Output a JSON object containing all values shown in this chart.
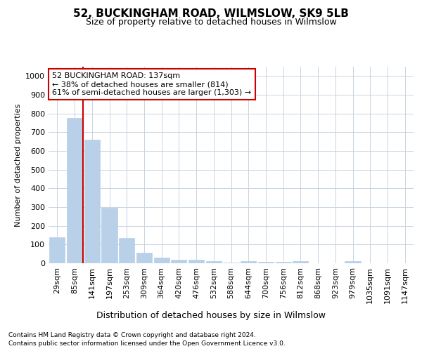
{
  "title": "52, BUCKINGHAM ROAD, WILMSLOW, SK9 5LB",
  "subtitle": "Size of property relative to detached houses in Wilmslow",
  "xlabel": "Distribution of detached houses by size in Wilmslow",
  "ylabel": "Number of detached properties",
  "bar_color": "#b8d0e8",
  "bar_edge_color": "#b8d0e8",
  "grid_color": "#c8d4e0",
  "vline_color": "#cc0000",
  "annotation_text": "52 BUCKINGHAM ROAD: 137sqm\n← 38% of detached houses are smaller (814)\n61% of semi-detached houses are larger (1,303) →",
  "annotation_box_color": "#ffffff",
  "annotation_box_edge": "#cc0000",
  "footnote1": "Contains HM Land Registry data © Crown copyright and database right 2024.",
  "footnote2": "Contains public sector information licensed under the Open Government Licence v3.0.",
  "categories": [
    "29sqm",
    "85sqm",
    "141sqm",
    "197sqm",
    "253sqm",
    "309sqm",
    "364sqm",
    "420sqm",
    "476sqm",
    "532sqm",
    "588sqm",
    "644sqm",
    "700sqm",
    "756sqm",
    "812sqm",
    "868sqm",
    "923sqm",
    "979sqm",
    "1035sqm",
    "1091sqm",
    "1147sqm"
  ],
  "values": [
    140,
    778,
    660,
    295,
    135,
    55,
    30,
    20,
    18,
    13,
    5,
    10,
    8,
    8,
    10,
    0,
    0,
    10,
    0,
    0,
    0
  ],
  "ylim": [
    0,
    1050
  ],
  "yticks": [
    0,
    100,
    200,
    300,
    400,
    500,
    600,
    700,
    800,
    900,
    1000
  ],
  "vline_index": 2,
  "background_color": "#ffffff",
  "plot_bg_color": "#ffffff"
}
